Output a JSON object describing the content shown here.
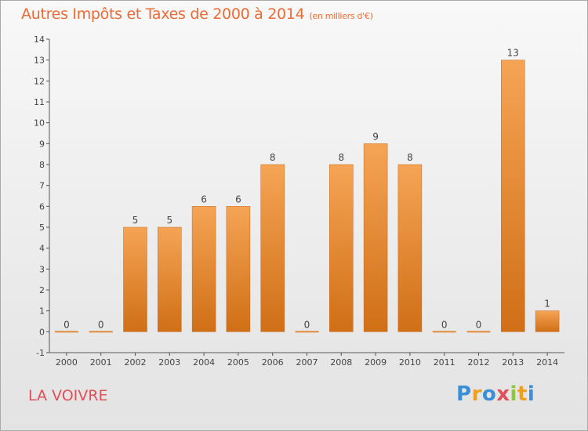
{
  "title": "Autres Impôts et Taxes de 2000 à 2014",
  "subtitle": "(en milliers d'€)",
  "commune": "LA VOIVRE",
  "logo_text": "Proxiti",
  "colors": {
    "bar_top": "#f5a455",
    "bar_bottom": "#d06f16",
    "title": "#ec6b35",
    "commune": "#e14f58",
    "axis": "#555555"
  },
  "chart_data": {
    "type": "bar",
    "title": "Autres Impôts et Taxes de 2000 à 2014",
    "subtitle": "(en milliers d'€)",
    "xlabel": "",
    "ylabel": "",
    "categories": [
      "2000",
      "2001",
      "2002",
      "2003",
      "2004",
      "2005",
      "2006",
      "2007",
      "2008",
      "2009",
      "2010",
      "2011",
      "2012",
      "2013",
      "2014"
    ],
    "values": [
      0,
      0,
      5,
      5,
      6,
      6,
      8,
      0,
      8,
      9,
      8,
      0,
      0,
      13,
      1
    ],
    "ylim": [
      -1,
      14
    ],
    "yticks": [
      -1,
      0,
      1,
      2,
      3,
      4,
      5,
      6,
      7,
      8,
      9,
      10,
      11,
      12,
      13,
      14
    ],
    "grid": false,
    "legend": "none"
  }
}
